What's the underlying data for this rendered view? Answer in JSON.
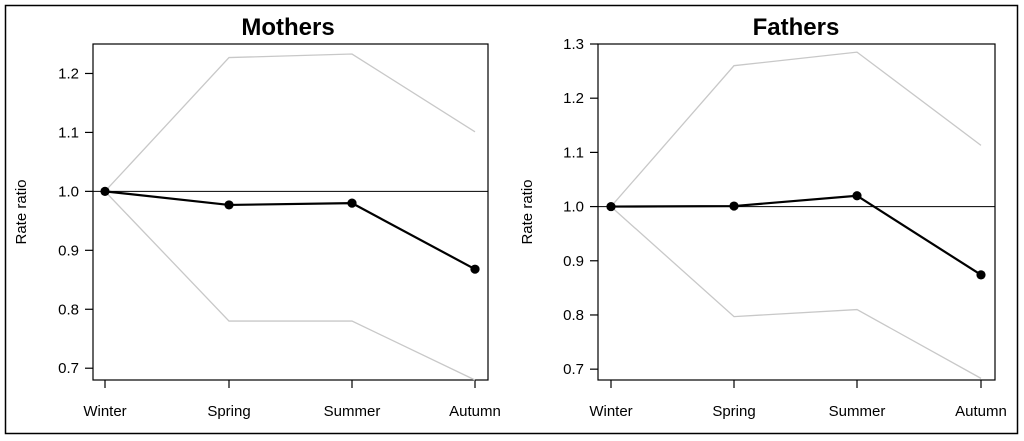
{
  "chart_data": [
    {
      "type": "line",
      "title": "Mothers",
      "ylabel": "Rate ratio",
      "xlabel": "",
      "categories": [
        "Winter",
        "Spring",
        "Summer",
        "Autumn"
      ],
      "ylim": [
        0.68,
        1.25
      ],
      "yticks": [
        0.7,
        0.8,
        0.9,
        1.0,
        1.1,
        1.2
      ],
      "ytick_labels": [
        "0.7",
        "0.8",
        "0.9",
        "1.0",
        "1.1",
        "1.2"
      ],
      "reference_line": 1.0,
      "grid": false,
      "series": [
        {
          "role": "estimate",
          "values": [
            1.0,
            0.977,
            0.98,
            0.868
          ]
        },
        {
          "role": "upper_ci",
          "values": [
            1.0,
            1.227,
            1.233,
            1.101
          ]
        },
        {
          "role": "lower_ci",
          "values": [
            1.0,
            0.78,
            0.78,
            0.68
          ]
        }
      ]
    },
    {
      "type": "line",
      "title": "Fathers",
      "ylabel": "Rate ratio",
      "xlabel": "",
      "categories": [
        "Winter",
        "Spring",
        "Summer",
        "Autumn"
      ],
      "ylim": [
        0.68,
        1.3
      ],
      "yticks": [
        0.7,
        0.8,
        0.9,
        1.0,
        1.1,
        1.2,
        1.3
      ],
      "ytick_labels": [
        "0.7",
        "0.8",
        "0.9",
        "1.0",
        "1.1",
        "1.2",
        "1.3"
      ],
      "reference_line": 1.0,
      "grid": false,
      "series": [
        {
          "role": "estimate",
          "values": [
            1.0,
            1.001,
            1.02,
            0.874
          ]
        },
        {
          "role": "upper_ci",
          "values": [
            1.0,
            1.26,
            1.285,
            1.113
          ]
        },
        {
          "role": "lower_ci",
          "values": [
            1.0,
            0.797,
            0.81,
            0.683
          ]
        }
      ]
    }
  ],
  "colors": {
    "estimate": "#000000",
    "ci": "#c8c8c8",
    "reference": "#000000",
    "frame": "#000000"
  }
}
